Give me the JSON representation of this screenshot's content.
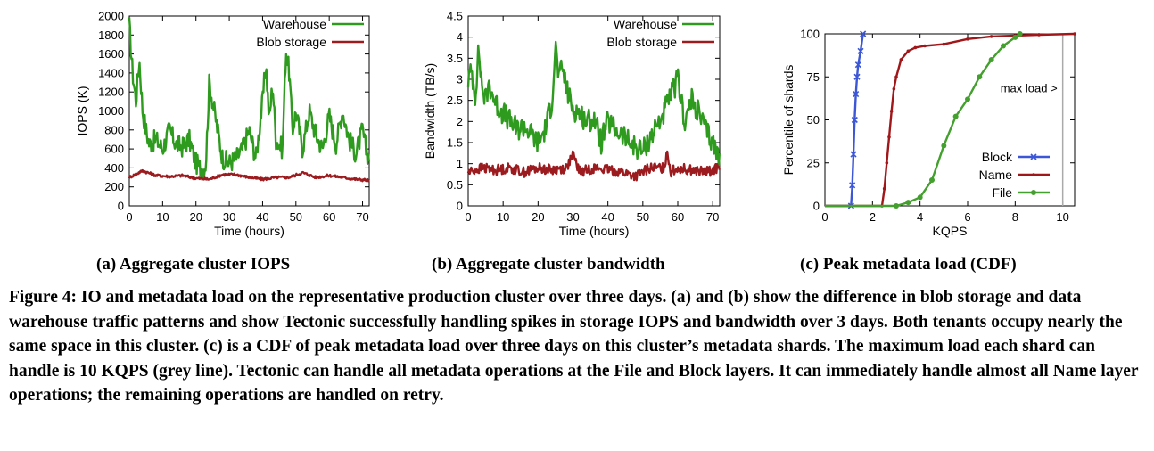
{
  "figure": {
    "subcaptions": [
      "(a) Aggregate cluster IOPS",
      "(b) Aggregate cluster bandwidth",
      "(c) Peak metadata load (CDF)"
    ],
    "caption": "Figure 4: IO and metadata load on the representative production cluster over three days. (a) and (b) show the difference in blob storage and data warehouse traffic patterns and show Tectonic successfully handling spikes in storage IOPS and bandwidth over 3 days. Both tenants occupy nearly the same space in this cluster. (c) is a CDF of peak metadata load over three days on this cluster’s metadata shards. The maximum load each shard can handle is 10 KQPS (grey line). Tectonic can handle all metadata operations at the File and Block layers. It can immediately handle almost all Name layer operations; the remaining operations are handled on retry."
  },
  "colors": {
    "warehouse": "#2e9a1e",
    "blob": "#9b1b1f",
    "block": "#3b56d6",
    "name": "#a0171a",
    "file": "#44a02e",
    "grey": "#aaaaaa"
  },
  "chart_data": [
    {
      "type": "line",
      "xlabel": "Time (hours)",
      "ylabel": "IOPS (K)",
      "xlim": [
        0,
        72
      ],
      "ylim": [
        0,
        2000
      ],
      "xticks": [
        0,
        10,
        20,
        30,
        40,
        50,
        60,
        70
      ],
      "yticks": [
        0,
        200,
        400,
        600,
        800,
        1000,
        1200,
        1400,
        1600,
        1800,
        2000
      ],
      "legend": "top-right",
      "series": [
        {
          "name": "Warehouse",
          "x": [
            0,
            1,
            2,
            3,
            4,
            5,
            6,
            8,
            10,
            12,
            14,
            16,
            18,
            20,
            22,
            23,
            24,
            25,
            26,
            28,
            30,
            32,
            34,
            36,
            38,
            40,
            41,
            42,
            43,
            44,
            46,
            47,
            48,
            49,
            50,
            52,
            54,
            56,
            58,
            60,
            62,
            64,
            66,
            68,
            70,
            71,
            72
          ],
          "y": [
            1900,
            1400,
            1100,
            1550,
            1000,
            800,
            650,
            700,
            600,
            800,
            650,
            620,
            700,
            450,
            380,
            450,
            1300,
            1100,
            900,
            500,
            450,
            500,
            600,
            800,
            500,
            1100,
            1500,
            900,
            1300,
            700,
            600,
            1650,
            1400,
            800,
            1000,
            600,
            1000,
            750,
            600,
            950,
            650,
            1000,
            700,
            550,
            800,
            600,
            500
          ]
        },
        {
          "name": "Blob storage",
          "x": [
            0,
            4,
            8,
            12,
            16,
            20,
            24,
            28,
            32,
            36,
            40,
            44,
            48,
            52,
            56,
            60,
            64,
            68,
            72
          ],
          "y": [
            300,
            370,
            320,
            310,
            320,
            290,
            280,
            330,
            330,
            300,
            280,
            300,
            300,
            350,
            300,
            320,
            300,
            280,
            270
          ]
        }
      ]
    },
    {
      "type": "line",
      "xlabel": "Time (hours)",
      "ylabel": "Bandwidth (TB/s)",
      "xlim": [
        0,
        72
      ],
      "ylim": [
        0,
        4.5
      ],
      "xticks": [
        0,
        10,
        20,
        30,
        40,
        50,
        60,
        70
      ],
      "yticks": [
        0,
        0.5,
        1,
        1.5,
        2,
        2.5,
        3,
        3.5,
        4,
        4.5
      ],
      "legend": "top-right",
      "series": [
        {
          "name": "Warehouse",
          "x": [
            0,
            1,
            2,
            3,
            4,
            5,
            6,
            8,
            10,
            12,
            14,
            16,
            18,
            20,
            22,
            24,
            25,
            26,
            27,
            28,
            30,
            32,
            34,
            36,
            38,
            40,
            42,
            44,
            46,
            48,
            50,
            52,
            54,
            56,
            58,
            60,
            62,
            64,
            66,
            68,
            70,
            72
          ],
          "y": [
            3.0,
            3.2,
            2.6,
            3.7,
            2.8,
            2.5,
            2.9,
            2.4,
            2.2,
            2.0,
            1.8,
            1.9,
            1.7,
            1.5,
            1.8,
            2.5,
            3.8,
            3.0,
            3.3,
            2.8,
            2.3,
            2.2,
            2.0,
            2.1,
            1.5,
            2.0,
            1.8,
            1.7,
            1.5,
            1.4,
            1.3,
            1.6,
            1.9,
            2.2,
            2.6,
            3.0,
            2.0,
            2.5,
            2.2,
            1.8,
            1.5,
            1.1
          ]
        },
        {
          "name": "Blob storage",
          "x": [
            0,
            4,
            8,
            12,
            16,
            20,
            24,
            28,
            30,
            32,
            36,
            40,
            44,
            48,
            50,
            52,
            56,
            57,
            58,
            60,
            64,
            68,
            72
          ],
          "y": [
            0.8,
            0.9,
            0.85,
            0.9,
            0.8,
            0.9,
            0.85,
            0.9,
            1.2,
            0.8,
            0.9,
            0.85,
            0.8,
            0.7,
            0.8,
            0.9,
            0.9,
            1.3,
            0.8,
            0.9,
            0.85,
            0.8,
            0.9
          ]
        }
      ]
    },
    {
      "type": "line",
      "xlabel": "KQPS",
      "ylabel": "Percentile of shards",
      "xlim": [
        0,
        10.5
      ],
      "ylim": [
        0,
        100
      ],
      "xticks": [
        0,
        2,
        4,
        6,
        8,
        10
      ],
      "yticks": [
        0,
        25,
        50,
        75,
        100
      ],
      "legend": "bottom-right",
      "annotation": {
        "text": "max load >",
        "x": 10
      },
      "series": [
        {
          "name": "Block",
          "x": [
            0,
            1.1,
            1.15,
            1.2,
            1.25,
            1.3,
            1.35,
            1.4,
            1.5,
            1.6
          ],
          "y": [
            0,
            0,
            12,
            30,
            50,
            65,
            75,
            82,
            90,
            100
          ]
        },
        {
          "name": "Name",
          "x": [
            0,
            2.4,
            2.5,
            2.6,
            2.7,
            2.8,
            2.9,
            3.0,
            3.2,
            3.5,
            3.8,
            4.2,
            5.0,
            6.0,
            7.0,
            8.0,
            9.0,
            10.5
          ],
          "y": [
            0,
            0,
            10,
            25,
            40,
            55,
            68,
            75,
            85,
            90,
            92,
            93,
            94,
            97,
            98.5,
            99,
            99.5,
            100
          ]
        },
        {
          "name": "File",
          "x": [
            0,
            3.0,
            3.5,
            4.0,
            4.5,
            5.0,
            5.5,
            6.0,
            6.5,
            7.0,
            7.5,
            8.0,
            8.2
          ],
          "y": [
            0,
            0,
            2,
            5,
            15,
            35,
            52,
            62,
            75,
            85,
            93,
            98,
            100
          ]
        }
      ]
    }
  ]
}
